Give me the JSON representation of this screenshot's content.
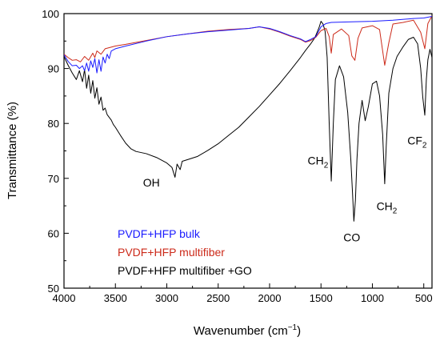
{
  "chart_data": {
    "type": "line",
    "xlabel": "Wavenumber (cm",
    "xlabel_sup": "−1",
    "xlabel_close": ")",
    "ylabel": "Transmittance (%)",
    "xlim": [
      4000,
      420
    ],
    "ylim": [
      50,
      100
    ],
    "x_ticks": [
      4000,
      3500,
      3000,
      2500,
      2000,
      1500,
      1000,
      500
    ],
    "y_ticks": [
      50,
      60,
      70,
      80,
      90,
      100
    ],
    "grid": false,
    "legend_position": "lower-left",
    "series": [
      {
        "name": "PVDF+HFP bulk",
        "color": "#1a1aff",
        "points": [
          [
            4000,
            92.5
          ],
          [
            3960,
            91.3
          ],
          [
            3920,
            90.5
          ],
          [
            3880,
            90.6
          ],
          [
            3850,
            90
          ],
          [
            3820,
            90.5
          ],
          [
            3800,
            89.6
          ],
          [
            3780,
            91
          ],
          [
            3760,
            89.5
          ],
          [
            3740,
            91.4
          ],
          [
            3720,
            90.2
          ],
          [
            3700,
            91.8
          ],
          [
            3680,
            89.2
          ],
          [
            3660,
            91.6
          ],
          [
            3640,
            89.5
          ],
          [
            3620,
            92.1
          ],
          [
            3600,
            91
          ],
          [
            3580,
            92.6
          ],
          [
            3560,
            91.8
          ],
          [
            3540,
            93.2
          ],
          [
            3500,
            93.6
          ],
          [
            3400,
            94.1
          ],
          [
            3200,
            95
          ],
          [
            3000,
            95.8
          ],
          [
            2800,
            96.3
          ],
          [
            2600,
            96.7
          ],
          [
            2400,
            97
          ],
          [
            2200,
            97.3
          ],
          [
            2100,
            97.6
          ],
          [
            2000,
            97.3
          ],
          [
            1900,
            96.7
          ],
          [
            1800,
            96
          ],
          [
            1700,
            95.4
          ],
          [
            1650,
            94.9
          ],
          [
            1600,
            95.3
          ],
          [
            1550,
            95.8
          ],
          [
            1500,
            97.6
          ],
          [
            1450,
            98.2
          ],
          [
            1400,
            98.4
          ],
          [
            1200,
            98.5
          ],
          [
            1000,
            98.6
          ],
          [
            800,
            98.8
          ],
          [
            600,
            99.1
          ],
          [
            500,
            99.2
          ],
          [
            420,
            99.5
          ]
        ]
      },
      {
        "name": "PVDF+HFP multifiber",
        "color": "#cc2a1a",
        "points": [
          [
            4000,
            92.6
          ],
          [
            3960,
            92
          ],
          [
            3920,
            91.5
          ],
          [
            3880,
            91.6
          ],
          [
            3840,
            91.2
          ],
          [
            3800,
            92.2
          ],
          [
            3760,
            91.5
          ],
          [
            3720,
            92.8
          ],
          [
            3700,
            92
          ],
          [
            3680,
            93.2
          ],
          [
            3640,
            92.6
          ],
          [
            3600,
            93.6
          ],
          [
            3500,
            94.1
          ],
          [
            3400,
            94.4
          ],
          [
            3200,
            95.1
          ],
          [
            3000,
            95.8
          ],
          [
            2800,
            96.3
          ],
          [
            2600,
            96.8
          ],
          [
            2400,
            97.1
          ],
          [
            2200,
            97.3
          ],
          [
            2100,
            97.6
          ],
          [
            2000,
            97.2
          ],
          [
            1900,
            96.6
          ],
          [
            1800,
            95.9
          ],
          [
            1700,
            95.3
          ],
          [
            1650,
            94.8
          ],
          [
            1600,
            95.1
          ],
          [
            1550,
            95.7
          ],
          [
            1500,
            96.9
          ],
          [
            1450,
            97.3
          ],
          [
            1420,
            95.8
          ],
          [
            1400,
            92.8
          ],
          [
            1380,
            96.2
          ],
          [
            1300,
            97.2
          ],
          [
            1230,
            96
          ],
          [
            1200,
            92.3
          ],
          [
            1170,
            91.5
          ],
          [
            1140,
            95.5
          ],
          [
            1100,
            97.4
          ],
          [
            1000,
            97.8
          ],
          [
            930,
            97.1
          ],
          [
            880,
            90.6
          ],
          [
            840,
            94.7
          ],
          [
            800,
            98.1
          ],
          [
            700,
            98.4
          ],
          [
            600,
            98.8
          ],
          [
            530,
            96.6
          ],
          [
            490,
            93.6
          ],
          [
            460,
            98.2
          ],
          [
            420,
            99.6
          ]
        ]
      },
      {
        "name": "PVDF+HFP multifiber +GO",
        "color": "#000000",
        "points": [
          [
            4000,
            92.2
          ],
          [
            3960,
            90.6
          ],
          [
            3920,
            89.2
          ],
          [
            3880,
            88
          ],
          [
            3850,
            89.6
          ],
          [
            3820,
            87.6
          ],
          [
            3800,
            89.8
          ],
          [
            3780,
            86.4
          ],
          [
            3760,
            88.8
          ],
          [
            3740,
            85.5
          ],
          [
            3720,
            87.8
          ],
          [
            3700,
            84.6
          ],
          [
            3680,
            86.5
          ],
          [
            3660,
            83.5
          ],
          [
            3640,
            84.8
          ],
          [
            3620,
            82.4
          ],
          [
            3600,
            82.8
          ],
          [
            3580,
            81.6
          ],
          [
            3560,
            81.1
          ],
          [
            3540,
            80.6
          ],
          [
            3520,
            79.8
          ],
          [
            3500,
            79.3
          ],
          [
            3450,
            77.8
          ],
          [
            3400,
            76.4
          ],
          [
            3350,
            75.4
          ],
          [
            3300,
            74.9
          ],
          [
            3250,
            74.7
          ],
          [
            3200,
            74.5
          ],
          [
            3100,
            73.8
          ],
          [
            3000,
            72.8
          ],
          [
            2950,
            72
          ],
          [
            2920,
            70.2
          ],
          [
            2900,
            72.6
          ],
          [
            2870,
            71.6
          ],
          [
            2850,
            73.1
          ],
          [
            2800,
            73.4
          ],
          [
            2700,
            74
          ],
          [
            2600,
            75.1
          ],
          [
            2500,
            76.3
          ],
          [
            2400,
            77.8
          ],
          [
            2300,
            79.3
          ],
          [
            2200,
            81.2
          ],
          [
            2100,
            83.1
          ],
          [
            2000,
            85.2
          ],
          [
            1900,
            87.3
          ],
          [
            1800,
            89.6
          ],
          [
            1700,
            92
          ],
          [
            1650,
            93.3
          ],
          [
            1600,
            94.5
          ],
          [
            1560,
            95.6
          ],
          [
            1520,
            97.4
          ],
          [
            1500,
            98.6
          ],
          [
            1480,
            98.1
          ],
          [
            1460,
            96.8
          ],
          [
            1440,
            92
          ],
          [
            1420,
            80
          ],
          [
            1400,
            69.5
          ],
          [
            1380,
            80
          ],
          [
            1360,
            88
          ],
          [
            1320,
            90.5
          ],
          [
            1280,
            88.5
          ],
          [
            1240,
            82
          ],
          [
            1210,
            73.5
          ],
          [
            1195,
            68
          ],
          [
            1180,
            62.2
          ],
          [
            1165,
            66
          ],
          [
            1150,
            73.5
          ],
          [
            1130,
            80
          ],
          [
            1100,
            84.2
          ],
          [
            1070,
            80.5
          ],
          [
            1040,
            83
          ],
          [
            1000,
            87.2
          ],
          [
            960,
            87.7
          ],
          [
            930,
            85
          ],
          [
            900,
            78
          ],
          [
            880,
            69
          ],
          [
            865,
            76
          ],
          [
            840,
            85.5
          ],
          [
            800,
            90
          ],
          [
            760,
            92.2
          ],
          [
            700,
            94
          ],
          [
            650,
            95.3
          ],
          [
            600,
            95.7
          ],
          [
            560,
            94.5
          ],
          [
            530,
            90
          ],
          [
            510,
            84.8
          ],
          [
            490,
            81.5
          ],
          [
            475,
            88
          ],
          [
            460,
            91.6
          ],
          [
            440,
            93.5
          ],
          [
            420,
            92
          ]
        ]
      }
    ],
    "annotations": [
      {
        "label": "OH",
        "x": 3150,
        "y": 68.5
      },
      {
        "label": "CH",
        "sub": "2",
        "x": 1530,
        "y": 72.5
      },
      {
        "label": "CO",
        "x": 1200,
        "y": 58.5
      },
      {
        "label": "CH",
        "sub": "2",
        "x": 860,
        "y": 64.2
      },
      {
        "label": "CF",
        "sub": "2",
        "x": 565,
        "y": 76.2
      }
    ]
  }
}
